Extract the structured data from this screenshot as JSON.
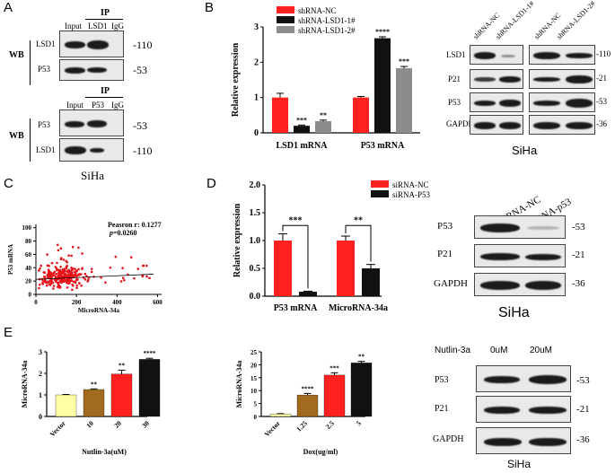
{
  "panels": {
    "A": {
      "label": "A",
      "ip_top": {
        "ip_label": "IP",
        "lanes": [
          "Input",
          "LSD1",
          "IgG"
        ],
        "wb_label": "WB",
        "rows": [
          {
            "name": "LSD1",
            "mw": "-110"
          },
          {
            "name": "P53",
            "mw": "-53"
          }
        ]
      },
      "ip_bottom": {
        "ip_label": "IP",
        "lanes": [
          "Input",
          "P53",
          "IgG"
        ],
        "wb_label": "WB",
        "rows": [
          {
            "name": "P53",
            "mw": "-53"
          },
          {
            "name": "LSD1",
            "mw": "-110"
          }
        ]
      },
      "cell_label": "SiHa"
    },
    "B": {
      "label": "B",
      "blot": {
        "lanes": [
          "shRNA-NC",
          "shRNA-LSD1-1#",
          "shRNA-NC",
          "shRNA-LSD1-2#"
        ],
        "rows": [
          {
            "name": "LSD1",
            "mw": "-110"
          },
          {
            "name": "P21",
            "mw": "-21"
          },
          {
            "name": "P53",
            "mw": "-53"
          },
          {
            "name": "GAPDH",
            "mw": "-36"
          }
        ],
        "cell_label": "SiHa"
      }
    },
    "C": {
      "label": "C",
      "stat_r": "Peasron r: 0.1277",
      "stat_p_prefix": "p",
      "stat_p_value": "=0.0260"
    },
    "D": {
      "label": "D",
      "blot": {
        "lanes": [
          "siRNA-NC",
          "siRNA-p53"
        ],
        "rows": [
          {
            "name": "P53",
            "mw": "-53"
          },
          {
            "name": "P21",
            "mw": "-21"
          },
          {
            "name": "GAPDH",
            "mw": "-36"
          }
        ],
        "cell_label": "SiHa"
      }
    },
    "E": {
      "label": "E",
      "blot": {
        "treatment": "Nutlin-3a",
        "lanes": [
          "0uM",
          "20uM"
        ],
        "rows": [
          {
            "name": "P53",
            "mw": "-53"
          },
          {
            "name": "P21",
            "mw": "-21"
          },
          {
            "name": "GAPDH",
            "mw": "-36"
          }
        ],
        "cell_label": "SiHa"
      }
    }
  },
  "chart_data": [
    {
      "id": "B-bar",
      "type": "bar",
      "categories": [
        "LSD1 mRNA",
        "P53 mRNA"
      ],
      "series": [
        {
          "name": "shRNA-NC",
          "color": "#ff2020",
          "values": [
            1.0,
            1.0
          ],
          "errors": [
            0.12,
            0.03
          ],
          "sig": [
            "",
            ""
          ]
        },
        {
          "name": "shRNA-LSD1-1#",
          "color": "#111111",
          "values": [
            0.2,
            2.68
          ],
          "errors": [
            0.02,
            0.04
          ],
          "sig": [
            "***",
            "****"
          ]
        },
        {
          "name": "shRNA-LSD1-2#",
          "color": "#8c8c8c",
          "values": [
            0.33,
            1.83
          ],
          "errors": [
            0.03,
            0.05
          ],
          "sig": [
            "**",
            "***"
          ]
        }
      ],
      "ylabel": "Relative expression",
      "yticks": [
        0,
        1,
        2,
        3
      ],
      "ylim": [
        0,
        3
      ],
      "legend": "top-left"
    },
    {
      "id": "C-scatter",
      "type": "scatter",
      "xlabel": "MicroRNA-34a",
      "ylabel": "P53 mRNA",
      "xticks": [
        0,
        200,
        400,
        600
      ],
      "yticks": [
        0,
        20,
        40,
        60,
        80,
        100
      ],
      "xlim": [
        0,
        620
      ],
      "ylim": [
        0,
        105
      ],
      "fit": {
        "slope": 0.0136,
        "intercept": 22.5
      },
      "color": "#e8141b",
      "n_points": 300,
      "x_distribution": {
        "median": 130,
        "spread": 80,
        "max": 580
      },
      "y_distribution": {
        "median": 25,
        "spread": 9,
        "max": 75
      }
    },
    {
      "id": "D-bar",
      "type": "bar",
      "categories": [
        "P53 mRNA",
        "MicroRNA-34a"
      ],
      "series": [
        {
          "name": "siRNA-NC",
          "color": "#ff2020",
          "values": [
            1.0,
            1.0
          ],
          "errors": [
            0.12,
            0.08
          ]
        },
        {
          "name": "siRNA-P53",
          "color": "#111111",
          "values": [
            0.08,
            0.5
          ],
          "errors": [
            0.01,
            0.07
          ]
        }
      ],
      "brackets": [
        "***",
        "**"
      ],
      "ylabel": "Relative expression",
      "yticks": [
        0.0,
        0.5,
        1.0,
        1.5,
        2.0
      ],
      "ylim": [
        0,
        2.0
      ],
      "legend": "top-right"
    },
    {
      "id": "E-bar1",
      "type": "bar",
      "categories": [
        "Vector",
        "10",
        "20",
        "30"
      ],
      "colors": [
        "#ffffa6",
        "#a26a1e",
        "#ff2020",
        "#111111"
      ],
      "values": [
        1.0,
        1.25,
        1.97,
        2.65
      ],
      "errors": [
        0.02,
        0.03,
        0.18,
        0.05
      ],
      "sig": [
        "",
        "**",
        "**",
        "****"
      ],
      "xlabel": "Nutlin-3a(uM)",
      "ylabel": "MicroRNA-34a",
      "yticks": [
        0,
        1,
        2,
        3
      ],
      "ylim": [
        0,
        3
      ]
    },
    {
      "id": "E-bar2",
      "type": "bar",
      "categories": [
        "Vector",
        "1.25",
        "2.5",
        "5"
      ],
      "colors": [
        "#ffffa6",
        "#a26a1e",
        "#ff2020",
        "#111111"
      ],
      "values": [
        1.0,
        8.3,
        16.0,
        20.7
      ],
      "errors": [
        0.1,
        0.6,
        0.9,
        0.6
      ],
      "sig": [
        "",
        "****",
        "***",
        "**"
      ],
      "xlabel": "Dox(ug/ml)",
      "ylabel": "MicroRNA-34a",
      "yticks": [
        0,
        5,
        10,
        15,
        20,
        25
      ],
      "ylim": [
        0,
        25
      ]
    }
  ]
}
